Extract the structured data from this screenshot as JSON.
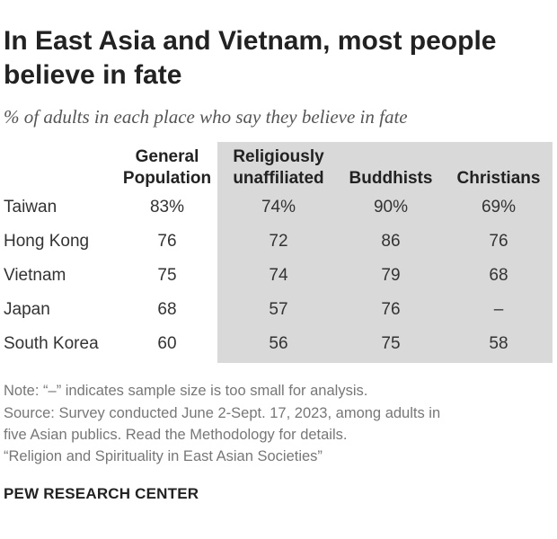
{
  "title": "In East Asia and Vietnam, most people believe in fate",
  "subtitle": "% of adults in each place who say they believe in fate",
  "chart_data": {
    "type": "table",
    "columns": [
      {
        "line1": "General",
        "line2": "Population"
      },
      {
        "line1": "Religiously",
        "line2": "unaffiliated"
      },
      {
        "line1": "",
        "line2": "Buddhists"
      },
      {
        "line1": "",
        "line2": "Christians"
      }
    ],
    "rows": [
      {
        "label": "Taiwan",
        "cells": [
          "83%",
          "74%",
          "90%",
          "69%"
        ]
      },
      {
        "label": "Hong Kong",
        "cells": [
          "76",
          "72",
          "86",
          "76"
        ]
      },
      {
        "label": "Vietnam",
        "cells": [
          "75",
          "74",
          "79",
          "68"
        ]
      },
      {
        "label": "Japan",
        "cells": [
          "68",
          "57",
          "76",
          "–"
        ]
      },
      {
        "label": "South Korea",
        "cells": [
          "60",
          "56",
          "75",
          "58"
        ]
      }
    ],
    "shaded_columns": [
      1,
      2,
      3
    ],
    "shade_color": "#d9d9d9"
  },
  "notes": [
    "Note: “–” indicates sample size is too small for analysis.",
    "Source: Survey conducted June 2-Sept. 17, 2023, among adults in",
    "five Asian publics. Read the Methodology for details.",
    "“Religion and Spirituality in East Asian Societies”"
  ],
  "footer": "PEW RESEARCH CENTER"
}
